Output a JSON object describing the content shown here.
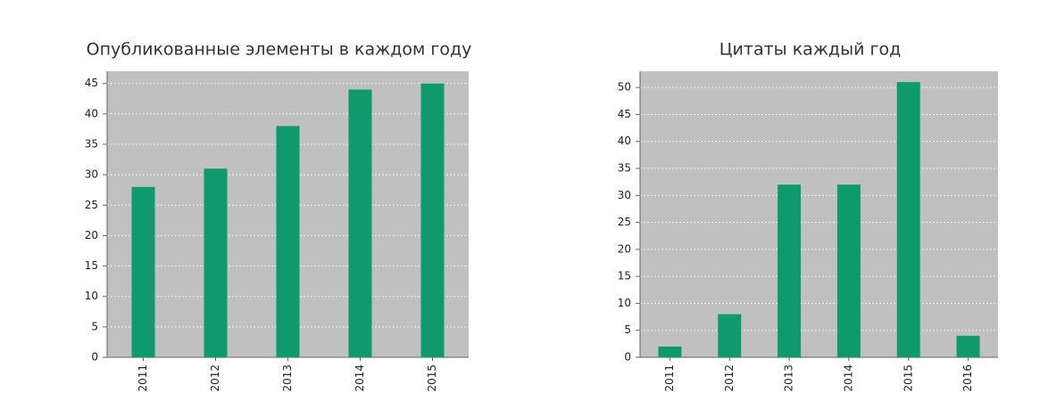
{
  "chart_data": [
    {
      "type": "bar",
      "title": "Опубликованные элементы в каждом году",
      "categories": [
        "2011",
        "2012",
        "2013",
        "2014",
        "2015"
      ],
      "values": [
        28,
        31,
        38,
        44,
        45
      ],
      "color": "#0e9a6c",
      "ylim": [
        0,
        47
      ],
      "yticks": [
        0,
        5,
        10,
        15,
        20,
        25,
        30,
        35,
        40,
        45
      ],
      "grid": true
    },
    {
      "type": "bar",
      "title": "Цитаты каждый год",
      "categories": [
        "2011",
        "2012",
        "2013",
        "2014",
        "2015",
        "2016"
      ],
      "values": [
        2,
        8,
        32,
        32,
        51,
        4
      ],
      "color": "#0e9a6c",
      "ylim": [
        0,
        53
      ],
      "yticks": [
        0,
        5,
        10,
        15,
        20,
        25,
        30,
        35,
        40,
        45,
        50
      ],
      "grid": true
    }
  ]
}
